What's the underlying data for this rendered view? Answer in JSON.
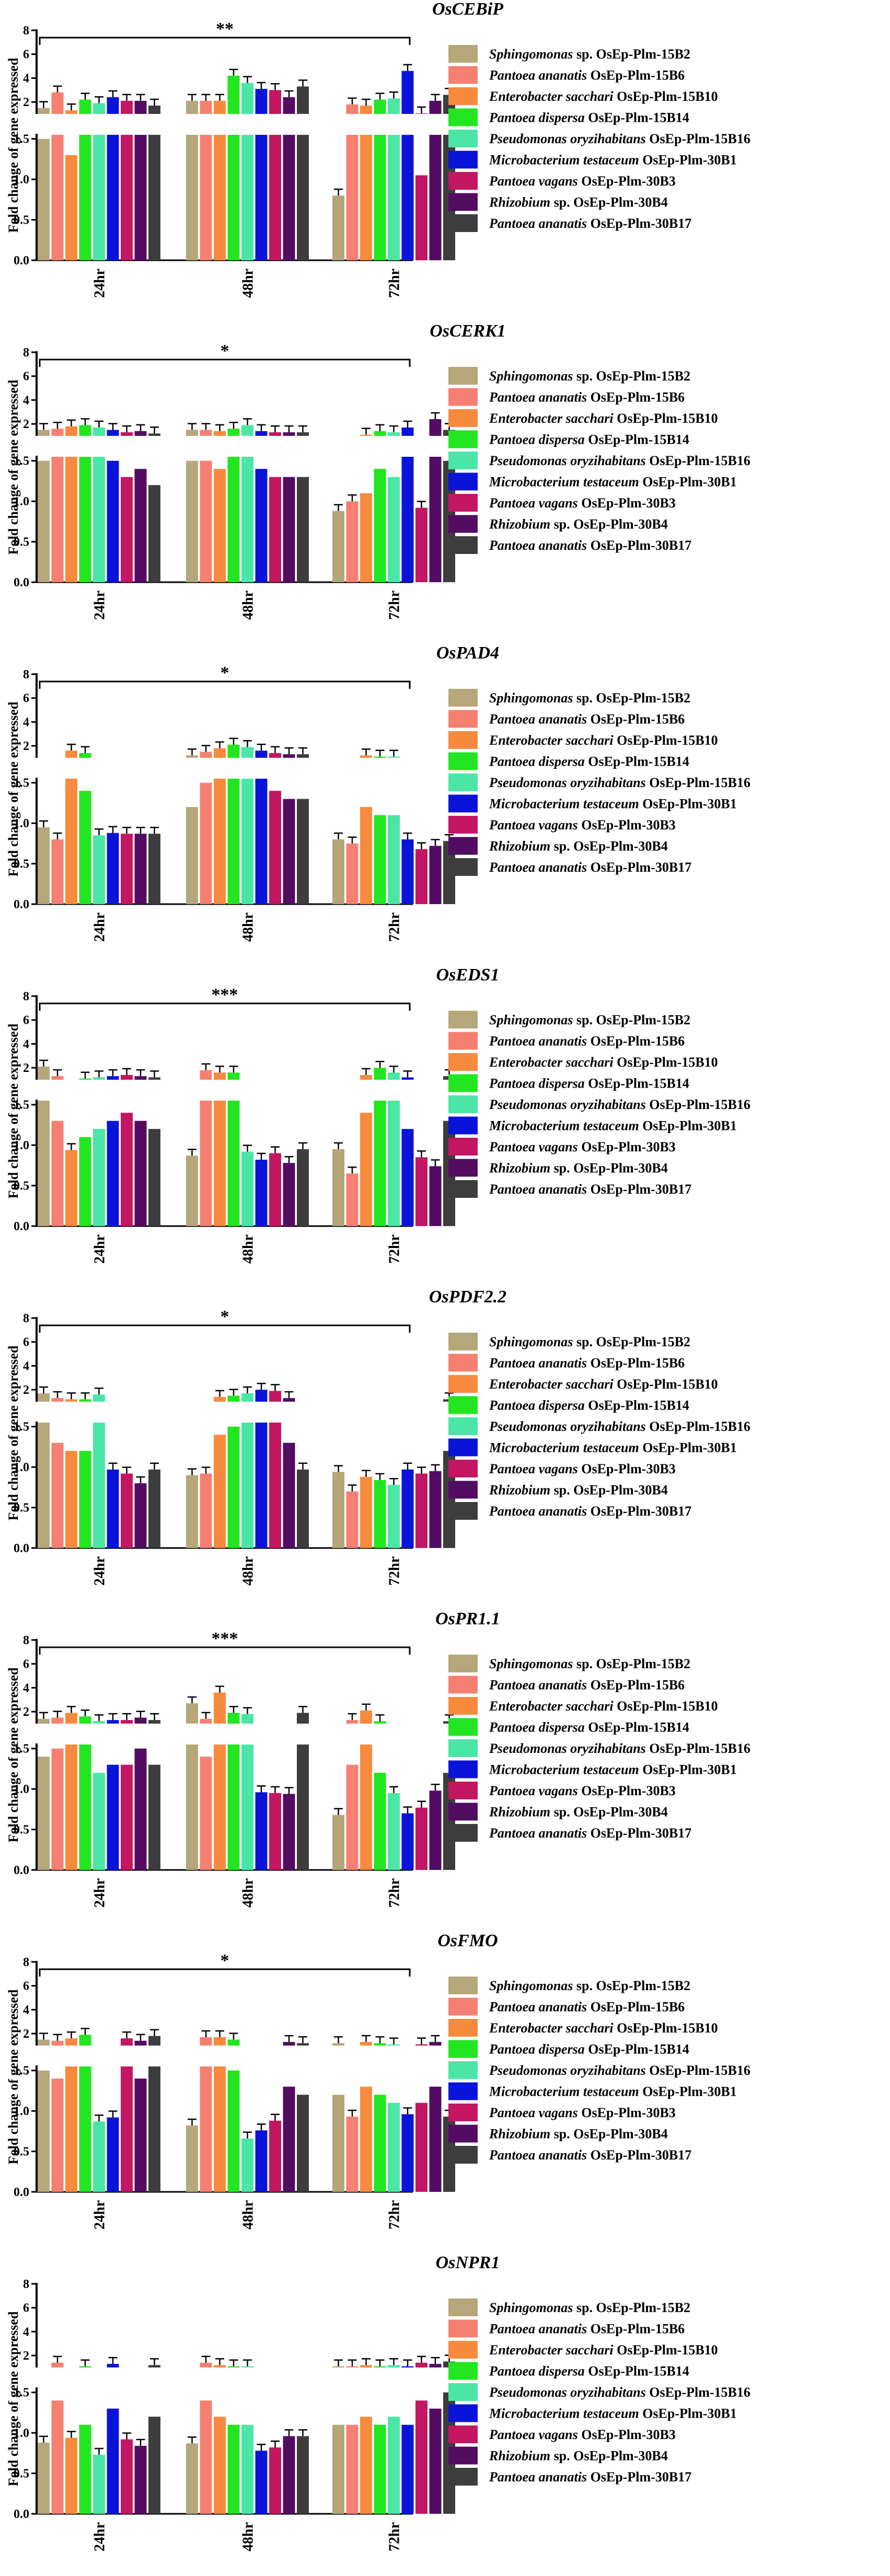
{
  "figure": {
    "ylabel": "Fold change of gene expressed",
    "categories": [
      "24hr",
      "48hr",
      "72hr"
    ],
    "legend": [
      {
        "name": "Sphingomonas",
        "suffix": " sp. OsEp-Plm-15B2",
        "color": "#b5a77a"
      },
      {
        "name": "Pantoea ananatis",
        "suffix": " OsEp-Plm-15B6",
        "color": "#f58071"
      },
      {
        "name": "Enterobacter sacchari",
        "suffix": " OsEp-Plm-15B10",
        "color": "#f88a3e"
      },
      {
        "name": "Pantoea dispersa",
        "suffix": " OsEp-Plm-15B14",
        "color": "#22e61f"
      },
      {
        "name": "Pseudomonas oryzihabitans",
        "suffix": " OsEp-Plm-15B16",
        "color": "#4be6a5"
      },
      {
        "name": "Microbacterium testaceum",
        "suffix": " OsEp-Plm-30B1",
        "color": "#0a14d9"
      },
      {
        "name": "Pantoea vagans",
        "suffix": " OsEp-Plm-30B3",
        "color": "#c31663"
      },
      {
        "name": "Rhizobium",
        "suffix": " sp. OsEp-Plm-30B4",
        "color": "#520c62"
      },
      {
        "name": "Pantoea ananatis",
        "suffix": " OsEp-Plm-30B17",
        "color": "#3d3d3d"
      }
    ],
    "lower_ticks": [
      "0.0",
      "0.5",
      "1.0",
      "1.5"
    ],
    "upper_ticks": [
      "2",
      "4",
      "6",
      "8"
    ]
  },
  "chart_data": [
    {
      "type": "bar",
      "title": "OsCEBiP",
      "significance": "**",
      "categories": [
        "24hr",
        "48hr",
        "72hr"
      ],
      "values": [
        [
          1.5,
          2.8,
          1.3,
          2.2,
          1.9,
          2.4,
          2.1,
          2.1,
          1.7
        ],
        [
          2.1,
          2.1,
          2.1,
          4.2,
          3.6,
          3.1,
          3.0,
          2.4,
          3.3
        ],
        [
          0.8,
          1.8,
          1.7,
          2.2,
          2.3,
          4.6,
          1.05,
          2.1,
          2.6
        ]
      ]
    },
    {
      "type": "bar",
      "title": "OsCERK1",
      "significance": "*",
      "categories": [
        "24hr",
        "48hr",
        "72hr"
      ],
      "values": [
        [
          1.5,
          1.6,
          1.8,
          1.9,
          1.7,
          1.5,
          1.3,
          1.4,
          1.2
        ],
        [
          1.5,
          1.5,
          1.4,
          1.6,
          1.9,
          1.4,
          1.3,
          1.3,
          1.3
        ],
        [
          0.88,
          1.0,
          1.1,
          1.4,
          1.3,
          1.7,
          0.92,
          2.4,
          1.5
        ]
      ]
    },
    {
      "type": "bar",
      "title": "OsPAD4",
      "significance": "*",
      "categories": [
        "24hr",
        "48hr",
        "72hr"
      ],
      "values": [
        [
          0.95,
          0.8,
          1.6,
          1.4,
          0.85,
          0.88,
          0.87,
          0.87,
          0.87
        ],
        [
          1.2,
          1.5,
          1.8,
          2.1,
          1.9,
          1.6,
          1.4,
          1.3,
          1.3
        ],
        [
          0.8,
          0.75,
          1.2,
          1.1,
          1.1,
          0.8,
          0.68,
          0.72,
          0.78
        ]
      ]
    },
    {
      "type": "bar",
      "title": "OsEDS1",
      "significance": "***",
      "categories": [
        "24hr",
        "48hr",
        "72hr"
      ],
      "values": [
        [
          2.1,
          1.3,
          0.94,
          1.1,
          1.2,
          1.3,
          1.4,
          1.3,
          1.2
        ],
        [
          0.87,
          1.8,
          1.6,
          1.6,
          0.92,
          0.82,
          0.9,
          0.78,
          0.95
        ],
        [
          0.95,
          0.65,
          1.4,
          2.0,
          1.6,
          1.2,
          0.85,
          0.74,
          1.3
        ]
      ]
    },
    {
      "type": "bar",
      "title": "OsPDF2.2",
      "significance": "*",
      "categories": [
        "24hr",
        "48hr",
        "72hr"
      ],
      "values": [
        [
          1.7,
          1.3,
          1.2,
          1.2,
          1.6,
          0.97,
          0.92,
          0.8,
          0.97
        ],
        [
          0.9,
          0.92,
          1.4,
          1.5,
          1.7,
          2.0,
          1.9,
          1.3,
          0.97
        ],
        [
          0.94,
          0.7,
          0.88,
          0.84,
          0.78,
          0.97,
          0.92,
          0.95,
          1.2
        ]
      ]
    },
    {
      "type": "bar",
      "title": "OsPR1.1",
      "significance": "***",
      "categories": [
        "24hr",
        "48hr",
        "72hr"
      ],
      "values": [
        [
          1.4,
          1.5,
          1.9,
          1.6,
          1.2,
          1.3,
          1.3,
          1.5,
          1.3
        ],
        [
          2.7,
          1.4,
          3.6,
          1.9,
          1.8,
          0.96,
          0.95,
          0.94,
          1.9
        ],
        [
          0.68,
          1.3,
          2.1,
          1.2,
          0.95,
          0.7,
          0.77,
          0.98,
          1.2
        ]
      ]
    },
    {
      "type": "bar",
      "title": "OsFMO",
      "significance": "*",
      "categories": [
        "24hr",
        "48hr",
        "72hr"
      ],
      "values": [
        [
          1.5,
          1.4,
          1.6,
          1.9,
          0.87,
          0.92,
          1.6,
          1.4,
          1.8
        ],
        [
          0.82,
          1.7,
          1.7,
          1.5,
          0.66,
          0.76,
          0.88,
          1.3,
          1.2
        ],
        [
          1.2,
          0.93,
          1.3,
          1.2,
          1.1,
          0.96,
          1.1,
          1.3,
          0.93
        ]
      ]
    },
    {
      "type": "bar",
      "title": "OsNPR1",
      "significance": "",
      "categories": [
        "24hr",
        "48hr",
        "72hr"
      ],
      "values": [
        [
          0.88,
          1.4,
          0.94,
          1.1,
          0.73,
          1.3,
          0.92,
          0.84,
          1.2
        ],
        [
          0.87,
          1.4,
          1.2,
          1.1,
          1.1,
          0.78,
          0.82,
          0.96,
          0.96
        ],
        [
          1.1,
          1.1,
          1.2,
          1.1,
          1.2,
          1.1,
          1.4,
          1.3,
          1.5
        ]
      ]
    }
  ]
}
